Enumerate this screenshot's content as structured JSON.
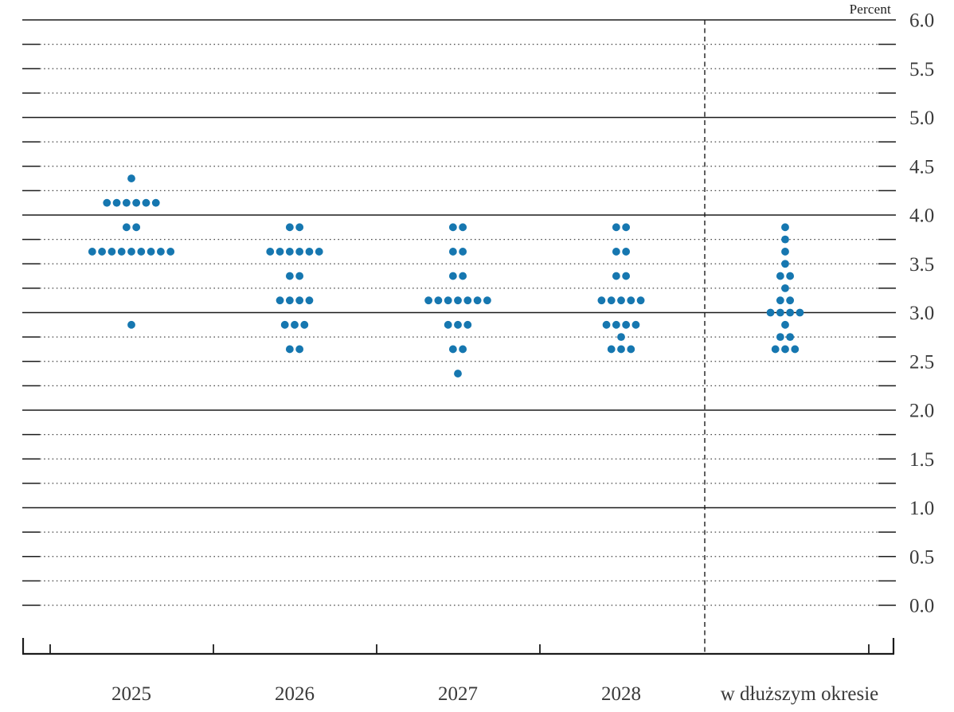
{
  "chart_data": {
    "type": "scatter",
    "variant": "fomc-dot-plot",
    "title": "",
    "ylabel": "Percent",
    "xlabel": "",
    "ylim": [
      0.0,
      6.0
    ],
    "grid_minor_step": 0.25,
    "grid_solid_at_integers": true,
    "ytick_step": 0.5,
    "ytick_labels": [
      "0.0",
      "0.5",
      "1.0",
      "1.5",
      "2.0",
      "2.5",
      "3.0",
      "3.5",
      "4.0",
      "4.5",
      "5.0",
      "5.5",
      "6.0"
    ],
    "categories": [
      "2025",
      "2026",
      "2027",
      "2028",
      "w dłuższym okresie"
    ],
    "separator_before_category": "w dłuższym okresie",
    "dot_color": "#1677b0",
    "axis_color": "#1c1c1c",
    "label_color": "#3a3a3a",
    "series": [
      {
        "category": "2025",
        "dots": [
          {
            "value": 4.375,
            "count": 1
          },
          {
            "value": 4.125,
            "count": 6
          },
          {
            "value": 3.875,
            "count": 2
          },
          {
            "value": 3.625,
            "count": 9
          },
          {
            "value": 2.875,
            "count": 1
          }
        ]
      },
      {
        "category": "2026",
        "dots": [
          {
            "value": 3.875,
            "count": 2
          },
          {
            "value": 3.625,
            "count": 6
          },
          {
            "value": 3.375,
            "count": 2
          },
          {
            "value": 3.125,
            "count": 4
          },
          {
            "value": 2.875,
            "count": 3
          },
          {
            "value": 2.625,
            "count": 2
          }
        ]
      },
      {
        "category": "2027",
        "dots": [
          {
            "value": 3.875,
            "count": 2
          },
          {
            "value": 3.625,
            "count": 2
          },
          {
            "value": 3.375,
            "count": 2
          },
          {
            "value": 3.125,
            "count": 7
          },
          {
            "value": 2.875,
            "count": 3
          },
          {
            "value": 2.625,
            "count": 2
          },
          {
            "value": 2.375,
            "count": 1
          }
        ]
      },
      {
        "category": "2028",
        "dots": [
          {
            "value": 3.875,
            "count": 2
          },
          {
            "value": 3.625,
            "count": 2
          },
          {
            "value": 3.375,
            "count": 2
          },
          {
            "value": 3.125,
            "count": 5
          },
          {
            "value": 2.875,
            "count": 4
          },
          {
            "value": 2.75,
            "count": 1
          },
          {
            "value": 2.625,
            "count": 3
          }
        ]
      },
      {
        "category": "w dłuższym okresie",
        "dots": [
          {
            "value": 3.875,
            "count": 1
          },
          {
            "value": 3.75,
            "count": 1
          },
          {
            "value": 3.625,
            "count": 1
          },
          {
            "value": 3.5,
            "count": 1
          },
          {
            "value": 3.375,
            "count": 2
          },
          {
            "value": 3.25,
            "count": 1
          },
          {
            "value": 3.125,
            "count": 2
          },
          {
            "value": 3.0,
            "count": 4
          },
          {
            "value": 2.875,
            "count": 1
          },
          {
            "value": 2.75,
            "count": 2
          },
          {
            "value": 2.625,
            "count": 3
          }
        ]
      }
    ]
  }
}
